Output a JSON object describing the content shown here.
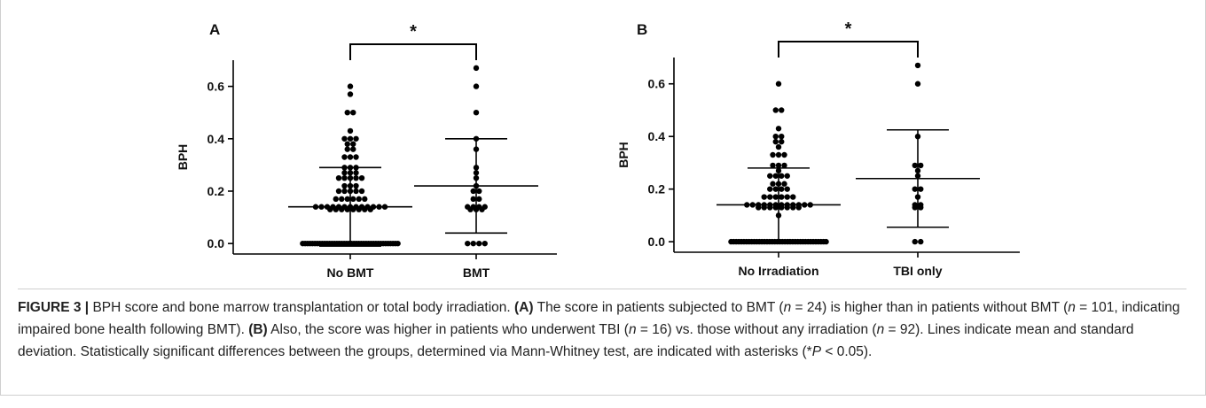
{
  "chart_data": [
    {
      "type": "dotplot",
      "panel_label": "A",
      "ylabel": "BPH",
      "significance": "*",
      "color": "#000000",
      "categories": [
        "No BMT",
        "BMT"
      ],
      "groups": [
        {
          "values": [
            0,
            0,
            0,
            0,
            0,
            0,
            0,
            0,
            0,
            0,
            0,
            0,
            0,
            0,
            0,
            0,
            0,
            0,
            0,
            0,
            0,
            0,
            0,
            0,
            0,
            0,
            0,
            0,
            0,
            0,
            0,
            0,
            0,
            0,
            0,
            0,
            0,
            0,
            0,
            0,
            0.13,
            0.13,
            0.13,
            0.13,
            0.13,
            0.13,
            0.13,
            0.13,
            0.14,
            0.14,
            0.14,
            0.14,
            0.14,
            0.14,
            0.14,
            0.14,
            0.14,
            0.14,
            0.14,
            0.14,
            0.14,
            0.17,
            0.17,
            0.17,
            0.17,
            0.17,
            0.17,
            0.2,
            0.2,
            0.2,
            0.2,
            0.2,
            0.22,
            0.22,
            0.22,
            0.25,
            0.25,
            0.25,
            0.25,
            0.25,
            0.27,
            0.27,
            0.27,
            0.29,
            0.29,
            0.29,
            0.33,
            0.33,
            0.33,
            0.36,
            0.36,
            0.38,
            0.38,
            0.4,
            0.4,
            0.4,
            0.43,
            0.5,
            0.5,
            0.57,
            0.6
          ]
        },
        {
          "values": [
            0,
            0,
            0,
            0,
            0.13,
            0.13,
            0.13,
            0.14,
            0.14,
            0.14,
            0.14,
            0.17,
            0.17,
            0.2,
            0.2,
            0.22,
            0.25,
            0.27,
            0.29,
            0.36,
            0.4,
            0.5,
            0.6,
            0.67
          ]
        }
      ],
      "means": [
        0.14,
        0.22
      ],
      "sds": [
        0.15,
        0.18
      ],
      "ylim": [
        -0.04,
        0.7
      ],
      "yticks": [
        {
          "value": 0,
          "label": "0.0"
        },
        {
          "value": 0.2,
          "label": "0.2"
        },
        {
          "value": 0.4,
          "label": "0.4"
        },
        {
          "value": 0.6,
          "label": "0.6"
        }
      ]
    },
    {
      "type": "dotplot",
      "panel_label": "B",
      "ylabel": "BPH",
      "significance": "*",
      "color": "#000000",
      "categories": [
        "No Irradiation",
        "TBI only"
      ],
      "groups": [
        {
          "values": [
            0,
            0,
            0,
            0,
            0,
            0,
            0,
            0,
            0,
            0,
            0,
            0,
            0,
            0,
            0,
            0,
            0,
            0,
            0,
            0,
            0,
            0,
            0,
            0,
            0,
            0,
            0,
            0,
            0,
            0,
            0,
            0,
            0,
            0,
            0,
            0,
            0,
            0,
            0.1,
            0.13,
            0.13,
            0.13,
            0.13,
            0.13,
            0.13,
            0.13,
            0.13,
            0.14,
            0.14,
            0.14,
            0.14,
            0.14,
            0.14,
            0.14,
            0.14,
            0.14,
            0.14,
            0.14,
            0.14,
            0.17,
            0.17,
            0.17,
            0.17,
            0.17,
            0.17,
            0.2,
            0.2,
            0.2,
            0.2,
            0.22,
            0.22,
            0.22,
            0.25,
            0.25,
            0.25,
            0.25,
            0.27,
            0.29,
            0.29,
            0.29,
            0.33,
            0.33,
            0.33,
            0.36,
            0.38,
            0.38,
            0.4,
            0.4,
            0.43,
            0.5,
            0.5,
            0.6
          ]
        },
        {
          "values": [
            0,
            0,
            0.13,
            0.13,
            0.14,
            0.14,
            0.17,
            0.2,
            0.2,
            0.25,
            0.27,
            0.29,
            0.29,
            0.4,
            0.6,
            0.67
          ]
        }
      ],
      "means": [
        0.14,
        0.24
      ],
      "sds": [
        0.14,
        0.185
      ],
      "ylim": [
        -0.04,
        0.7
      ],
      "yticks": [
        {
          "value": 0,
          "label": "0.0"
        },
        {
          "value": 0.2,
          "label": "0.2"
        },
        {
          "value": 0.4,
          "label": "0.4"
        },
        {
          "value": 0.6,
          "label": "0.6"
        }
      ]
    }
  ],
  "caption": {
    "parts": [
      "FIGURE 3 |",
      " BPH score and bone marrow transplantation or total body irradiation. ",
      "(A)",
      " The score in patients subjected to BMT (",
      "n",
      " = 24) is higher than in patients without BMT (",
      "n",
      " = 101, indicating impaired bone health following BMT). ",
      "(B)",
      " Also, the score was higher in patients who underwent TBI (",
      "n",
      " = 16) vs. those without any irradiation (",
      "n",
      " = 92). Lines indicate mean and standard deviation. Statistically significant differences between the groups, determined via Mann-Whitney test, are indicated with asterisks (*",
      "P",
      " < 0.05)."
    ]
  }
}
